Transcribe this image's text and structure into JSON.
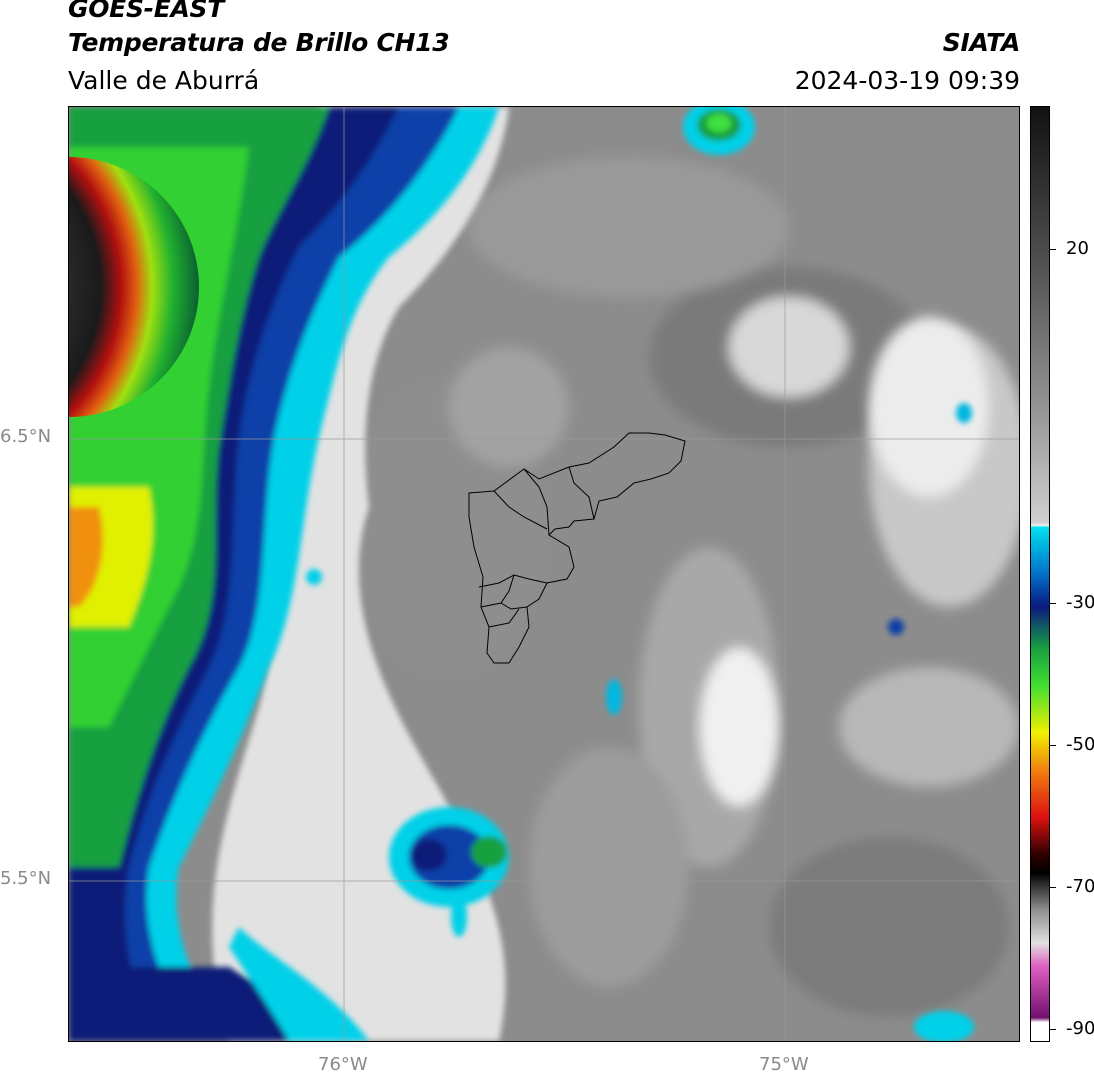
{
  "header": {
    "satellite": "GOES-EAST",
    "product": "Temperatura de Brillo CH13",
    "organization": "SIATA",
    "region": "Valle de Aburrá",
    "timestamp": "2024-03-19 09:39"
  },
  "map": {
    "lat_labels": [
      {
        "label": "6.5°N",
        "value": 6.5
      },
      {
        "label": "5.5°N",
        "value": 5.5
      }
    ],
    "lon_labels": [
      {
        "label": "76°W",
        "value": -76
      },
      {
        "label": "75°W",
        "value": -75
      }
    ],
    "gridlines": true,
    "overlay": "Valle de Aburrá municipality boundaries"
  },
  "colorbar": {
    "ticks": [
      "20",
      "-30",
      "-50",
      "-70",
      "-90"
    ],
    "palette": {
      "warm": "#1a1a1a",
      "gray_mid": "#8a8a8a",
      "gray_light": "#f0f0f0",
      "cyan": "#00d8ee",
      "blue": "#0a3aa0",
      "navy": "#0a1a70",
      "green": "#0aa83a",
      "bright_green": "#30e030",
      "yellow": "#f0f000",
      "orange": "#f08010",
      "red": "#e01010",
      "black": "#000000",
      "pink": "#e060c0",
      "purple": "#801080",
      "white": "#ffffff"
    }
  }
}
